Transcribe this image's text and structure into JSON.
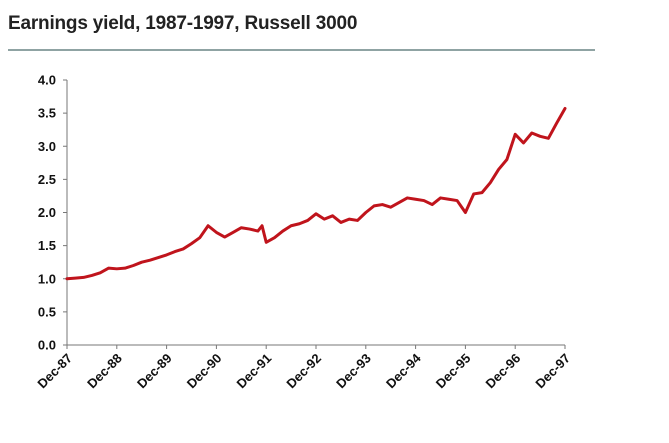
{
  "chart_data": {
    "type": "line",
    "title": "Earnings yield, 1987-1997, Russell 3000",
    "xlabel": "",
    "ylabel": "",
    "ylim": [
      0,
      4
    ],
    "yticks": [
      "0.0",
      "0.5",
      "1.0",
      "1.5",
      "2.0",
      "2.5",
      "3.0",
      "3.5",
      "4.0"
    ],
    "xticks": [
      "Dec-87",
      "Dec-88",
      "Dec-89",
      "Dec-90",
      "Dec-91",
      "Dec-92",
      "Dec-93",
      "Dec-94",
      "Dec-95",
      "Dec-96",
      "Dec-97"
    ],
    "grid": false,
    "legend": "none",
    "line_color": "#c0141c",
    "series": [
      {
        "x": [
          "Dec-87",
          "Feb-88",
          "Apr-88",
          "Jun-88",
          "Aug-88",
          "Oct-88",
          "Dec-88",
          "Feb-89",
          "Apr-89",
          "Jun-89",
          "Aug-89",
          "Oct-89",
          "Dec-89",
          "Feb-90",
          "Apr-90",
          "Jun-90",
          "Aug-90",
          "Oct-90",
          "Dec-90",
          "Feb-91",
          "Apr-91",
          "Jun-91",
          "Aug-91",
          "Oct-91",
          "Nov-91",
          "Dec-91",
          "Feb-92",
          "Apr-92",
          "Jun-92",
          "Aug-92",
          "Oct-92",
          "Dec-92",
          "Feb-93",
          "Apr-93",
          "Jun-93",
          "Aug-93",
          "Oct-93",
          "Dec-93",
          "Feb-94",
          "Apr-94",
          "Jun-94",
          "Aug-94",
          "Oct-94",
          "Dec-94",
          "Feb-95",
          "Apr-95",
          "Jun-95",
          "Aug-95",
          "Oct-95",
          "Dec-95",
          "Feb-96",
          "Apr-96",
          "Jun-96",
          "Aug-96",
          "Oct-96",
          "Dec-96",
          "Feb-97",
          "Apr-97",
          "Jun-97",
          "Aug-97",
          "Oct-97",
          "Dec-97"
        ],
        "values": [
          1.0,
          1.01,
          1.02,
          1.05,
          1.09,
          1.16,
          1.15,
          1.16,
          1.2,
          1.25,
          1.28,
          1.32,
          1.36,
          1.41,
          1.45,
          1.53,
          1.62,
          1.8,
          1.7,
          1.63,
          1.7,
          1.77,
          1.75,
          1.72,
          1.8,
          1.55,
          1.62,
          1.72,
          1.8,
          1.83,
          1.88,
          1.98,
          1.9,
          1.95,
          1.85,
          1.9,
          1.88,
          2.0,
          2.1,
          2.12,
          2.08,
          2.15,
          2.22,
          2.2,
          2.18,
          2.12,
          2.22,
          2.2,
          2.18,
          2.0,
          2.28,
          2.3,
          2.45,
          2.65,
          2.8,
          3.18,
          3.05,
          3.2,
          3.15,
          3.12,
          3.35,
          3.57
        ]
      }
    ]
  }
}
